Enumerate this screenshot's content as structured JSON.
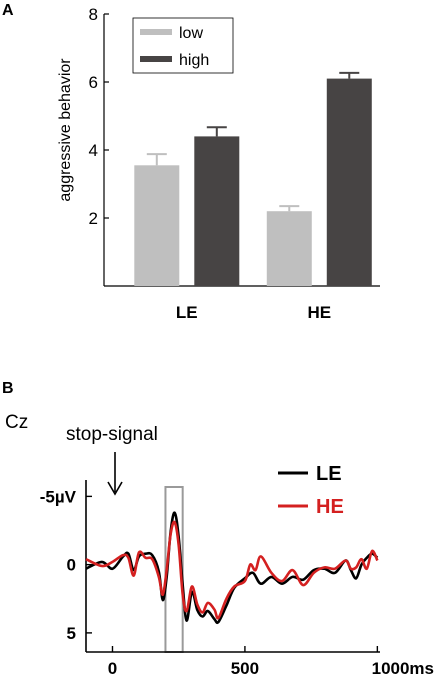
{
  "chart_data": [
    {
      "panel": "A",
      "type": "bar",
      "categories": [
        "LE",
        "HE"
      ],
      "series": [
        {
          "name": "low",
          "color": "#bfbfbf",
          "values": [
            3.55,
            2.2
          ],
          "errors": [
            0.33,
            0.15
          ]
        },
        {
          "name": "high",
          "color": "#474444",
          "values": [
            4.4,
            6.1
          ],
          "errors": [
            0.27,
            0.17
          ]
        }
      ],
      "ylabel": "aggressive behavior",
      "ylim": [
        0,
        8
      ],
      "yticks": [
        "2",
        "4",
        "6",
        "8"
      ],
      "legend_placement": "top-left",
      "grid": false
    },
    {
      "panel": "B",
      "type": "line",
      "electrode": "Cz",
      "annotation": "stop-signal",
      "xunit": "ms",
      "xticks": [
        "0",
        "500",
        "1000ms"
      ],
      "yticks": [
        "-5µV",
        "0",
        "5"
      ],
      "ylim": [
        -6.2,
        6.4
      ],
      "xlim": [
        -100,
        1010
      ],
      "y_inverted": true,
      "highlight_window": [
        200,
        265
      ],
      "legend_placement": "top-right",
      "grid": false,
      "series": [
        {
          "name": "LE",
          "color": "#000000",
          "x": [
            -100,
            -40,
            0,
            40,
            60,
            80,
            100,
            125,
            150,
            175,
            190,
            205,
            220,
            235,
            250,
            265,
            280,
            300,
            320,
            340,
            360,
            385,
            400,
            430,
            460,
            500,
            530,
            560,
            600,
            640,
            680,
            720,
            760,
            800,
            840,
            880,
            900,
            920,
            940,
            960,
            980,
            1000
          ],
          "y": [
            0.3,
            -0.2,
            0.3,
            -0.6,
            -0.8,
            0.4,
            -0.6,
            -0.8,
            -0.7,
            0.5,
            2.6,
            0.8,
            -2.5,
            -3.8,
            -2.0,
            1.5,
            4.1,
            2.0,
            3.3,
            3.8,
            3.4,
            4.0,
            4.2,
            3.0,
            1.7,
            1.0,
            0.6,
            1.4,
            0.9,
            1.4,
            0.9,
            1.1,
            0.4,
            0.3,
            0.6,
            -0.3,
            0.4,
            1.0,
            0.0,
            -0.5,
            -0.8,
            -0.5
          ]
        },
        {
          "name": "HE",
          "color": "#d42020",
          "x": [
            -100,
            -40,
            0,
            40,
            60,
            80,
            100,
            125,
            150,
            175,
            190,
            205,
            220,
            235,
            250,
            265,
            280,
            300,
            320,
            340,
            360,
            385,
            400,
            430,
            460,
            500,
            520,
            540,
            560,
            600,
            640,
            680,
            720,
            760,
            800,
            840,
            880,
            900,
            920,
            940,
            960,
            980,
            1000
          ],
          "y": [
            -0.4,
            0.1,
            -0.2,
            -0.7,
            -0.5,
            0.8,
            -0.9,
            -0.5,
            -0.4,
            0.9,
            2.2,
            0.3,
            -2.3,
            -3.1,
            -1.4,
            2.2,
            3.4,
            1.6,
            2.9,
            3.5,
            2.8,
            3.3,
            3.9,
            2.5,
            1.6,
            1.2,
            0.0,
            0.4,
            -0.6,
            0.6,
            1.2,
            0.4,
            1.5,
            0.6,
            0.2,
            0.3,
            -0.3,
            0.3,
            0.2,
            -0.4,
            0.3,
            -1.0,
            -0.3
          ]
        }
      ]
    }
  ]
}
